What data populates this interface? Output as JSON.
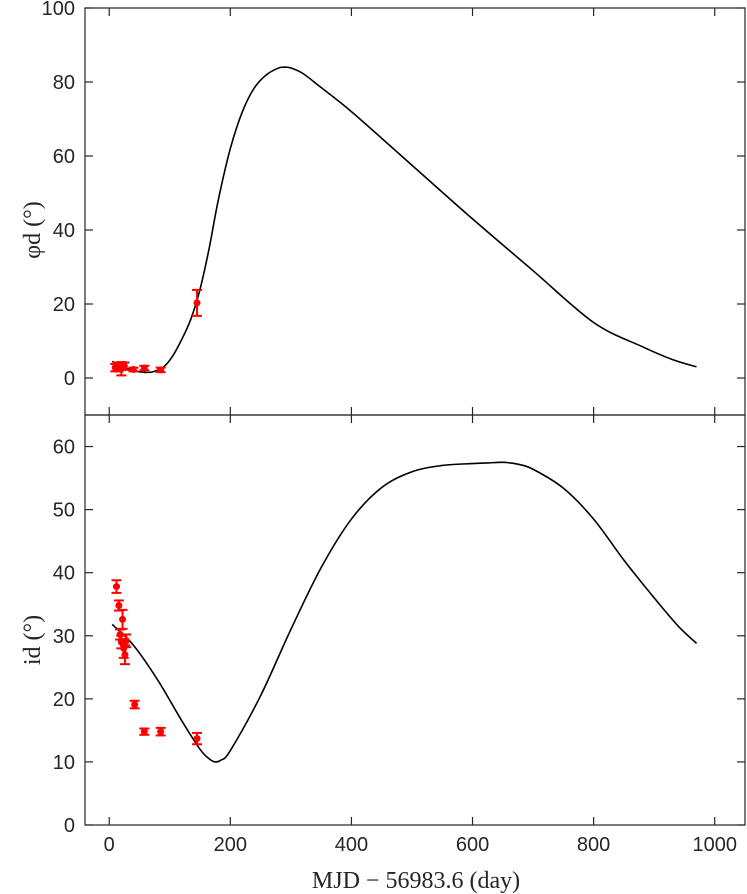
{
  "chart_data": [
    {
      "type": "line",
      "panel": "top",
      "xlabel": "",
      "ylabel": "φd (°)",
      "xlim": [
        -40,
        1050
      ],
      "ylim": [
        -10,
        100
      ],
      "xticks": [
        0,
        200,
        400,
        600,
        800,
        1000
      ],
      "yticks": [
        0,
        20,
        40,
        60,
        80,
        100
      ],
      "model_curve": {
        "color": "#000000",
        "x": [
          5,
          20,
          40,
          60,
          75,
          90,
          105,
          120,
          135,
          150,
          165,
          180,
          200,
          220,
          240,
          260,
          280,
          290,
          300,
          320,
          350,
          400,
          500,
          600,
          700,
          800,
          880,
          930,
          970
        ],
        "y": [
          4.5,
          3.2,
          2.0,
          1.5,
          1.8,
          3.0,
          6.0,
          10.5,
          16.0,
          24.0,
          35.0,
          48.0,
          62.0,
          72.0,
          78.5,
          82.0,
          83.8,
          84.0,
          83.8,
          82.3,
          78.5,
          72.0,
          57.5,
          43.0,
          29.0,
          15.0,
          8.5,
          5.0,
          3.0
        ]
      },
      "observations": {
        "color": "#ff0000",
        "points": [
          {
            "x": 10,
            "y": 2.8,
            "err": 1.0
          },
          {
            "x": 15,
            "y": 3.0,
            "err": 1.2
          },
          {
            "x": 20,
            "y": 2.5,
            "err": 1.8
          },
          {
            "x": 25,
            "y": 3.2,
            "err": 1.0
          },
          {
            "x": 40,
            "y": 2.3,
            "err": 0.5
          },
          {
            "x": 58,
            "y": 2.7,
            "err": 0.6
          },
          {
            "x": 85,
            "y": 2.2,
            "err": 0.6
          },
          {
            "x": 145,
            "y": 20.3,
            "err": 3.5
          }
        ]
      }
    },
    {
      "type": "line",
      "panel": "bottom",
      "xlabel": "MJD − 56983.6 (day)",
      "ylabel": "id (°)",
      "xlim": [
        -40,
        1050
      ],
      "ylim": [
        0,
        65
      ],
      "xticks": [
        0,
        200,
        400,
        600,
        800,
        1000
      ],
      "yticks": [
        0,
        10,
        20,
        30,
        40,
        50,
        60
      ],
      "model_curve": {
        "color": "#000000",
        "x": [
          5,
          40,
          80,
          120,
          150,
          165,
          175,
          185,
          200,
          250,
          300,
          350,
          400,
          450,
          500,
          550,
          600,
          625,
          650,
          675,
          700,
          750,
          800,
          850,
          900,
          940,
          970
        ],
        "y": [
          31.8,
          28.5,
          23.0,
          16.5,
          12.0,
          10.5,
          10.0,
          10.3,
          11.8,
          20.5,
          31.0,
          40.8,
          48.5,
          53.5,
          56.0,
          57.0,
          57.3,
          57.4,
          57.5,
          57.2,
          56.4,
          53.4,
          48.5,
          42.0,
          36.0,
          31.5,
          28.8
        ]
      },
      "observations": {
        "color": "#ff0000",
        "points": [
          {
            "x": 12,
            "y": 37.8,
            "err": 1.0
          },
          {
            "x": 16,
            "y": 34.8,
            "err": 0.8
          },
          {
            "x": 18,
            "y": 30.2,
            "err": 0.8
          },
          {
            "x": 20,
            "y": 29.0,
            "err": 1.0
          },
          {
            "x": 22,
            "y": 32.6,
            "err": 1.5
          },
          {
            "x": 24,
            "y": 28.0,
            "err": 1.5
          },
          {
            "x": 26,
            "y": 27.0,
            "err": 1.5
          },
          {
            "x": 28,
            "y": 29.2,
            "err": 1.0
          },
          {
            "x": 42,
            "y": 19.1,
            "err": 0.6
          },
          {
            "x": 58,
            "y": 14.8,
            "err": 0.5
          },
          {
            "x": 85,
            "y": 14.8,
            "err": 0.6
          },
          {
            "x": 145,
            "y": 13.7,
            "err": 0.9
          }
        ]
      }
    }
  ]
}
